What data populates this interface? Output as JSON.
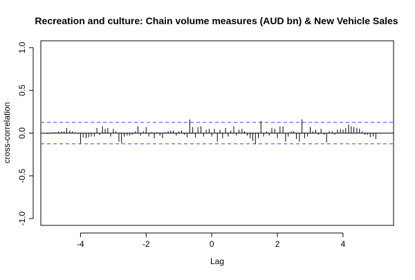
{
  "chart_data": {
    "type": "bar",
    "title": "Recreation and culture: Chain volume measures (AUD bn) & New Vehicle Sales",
    "xlabel": "Lag",
    "ylabel": "cross-correlation",
    "xlim": [
      -5.21,
      5.54
    ],
    "ylim": [
      -1.08,
      1.08
    ],
    "x_ticks": [
      -4,
      -2,
      0,
      2,
      4
    ],
    "x_tick_labels": [
      "-4",
      "-2",
      "0",
      "2",
      "4"
    ],
    "y_ticks": [
      -1.0,
      -0.5,
      0.0,
      0.5,
      1.0
    ],
    "y_tick_labels": [
      "-1.0",
      "-0.5",
      "0.0",
      "0.5",
      "1.0"
    ],
    "confidence_limit": 0.125,
    "ci_color": "#4d4dff",
    "lags": [
      -5.0,
      -4.92,
      -4.83,
      -4.75,
      -4.67,
      -4.58,
      -4.5,
      -4.42,
      -4.33,
      -4.25,
      -4.17,
      -4.08,
      -4.0,
      -3.92,
      -3.83,
      -3.75,
      -3.67,
      -3.58,
      -3.5,
      -3.42,
      -3.33,
      -3.25,
      -3.17,
      -3.08,
      -3.0,
      -2.92,
      -2.83,
      -2.75,
      -2.67,
      -2.58,
      -2.5,
      -2.42,
      -2.33,
      -2.25,
      -2.17,
      -2.08,
      -2.0,
      -1.92,
      -1.83,
      -1.75,
      -1.67,
      -1.58,
      -1.5,
      -1.42,
      -1.33,
      -1.25,
      -1.17,
      -1.08,
      -1.0,
      -0.92,
      -0.83,
      -0.75,
      -0.67,
      -0.58,
      -0.5,
      -0.42,
      -0.33,
      -0.25,
      -0.17,
      -0.08,
      0.0,
      0.08,
      0.17,
      0.25,
      0.33,
      0.42,
      0.5,
      0.58,
      0.67,
      0.75,
      0.83,
      0.92,
      1.0,
      1.08,
      1.17,
      1.25,
      1.33,
      1.42,
      1.5,
      1.58,
      1.67,
      1.75,
      1.83,
      1.92,
      2.0,
      2.08,
      2.17,
      2.25,
      2.33,
      2.42,
      2.5,
      2.58,
      2.67,
      2.75,
      2.83,
      2.92,
      3.0,
      3.08,
      3.17,
      3.25,
      3.33,
      3.42,
      3.5,
      3.58,
      3.67,
      3.75,
      3.83,
      3.92,
      4.0,
      4.08,
      4.17,
      4.25,
      4.33,
      4.42,
      4.5,
      4.58,
      4.67,
      4.75,
      4.83,
      4.92,
      5.0
    ],
    "values": [
      -0.01,
      -0.01,
      0.01,
      0.01,
      0.02,
      0.02,
      0.02,
      0.06,
      0.03,
      0.02,
      0.01,
      -0.01,
      -0.12,
      -0.05,
      -0.06,
      -0.05,
      -0.04,
      -0.04,
      0.06,
      -0.02,
      0.08,
      0.05,
      0.06,
      -0.04,
      0.05,
      0.02,
      -0.1,
      -0.12,
      -0.04,
      -0.03,
      -0.03,
      -0.02,
      0.02,
      0.08,
      -0.03,
      0.02,
      0.07,
      -0.04,
      0.01,
      -0.06,
      0.01,
      -0.03,
      -0.06,
      0.01,
      0.02,
      0.03,
      0.03,
      -0.03,
      0.02,
      0.03,
      -0.02,
      -0.05,
      0.16,
      0.07,
      -0.05,
      0.07,
      0.08,
      -0.04,
      0.04,
      0.05,
      -0.04,
      0.05,
      -0.1,
      0.04,
      -0.06,
      0.06,
      -0.04,
      0.03,
      0.08,
      -0.03,
      0.04,
      0.05,
      0.02,
      -0.03,
      -0.06,
      -0.09,
      -0.13,
      -0.06,
      0.14,
      -0.04,
      0.02,
      -0.03,
      0.06,
      0.05,
      -0.06,
      0.08,
      0.08,
      -0.1,
      -0.04,
      0.02,
      0.02,
      -0.07,
      -0.1,
      0.16,
      -0.06,
      -0.04,
      0.07,
      0.02,
      0.04,
      -0.02,
      0.05,
      -0.02,
      -0.11,
      0.02,
      0.02,
      -0.02,
      0.04,
      0.05,
      0.04,
      0.06,
      0.1,
      0.08,
      0.07,
      0.06,
      0.05,
      0.02,
      -0.02,
      -0.02,
      -0.05,
      -0.04,
      -0.07
    ]
  }
}
